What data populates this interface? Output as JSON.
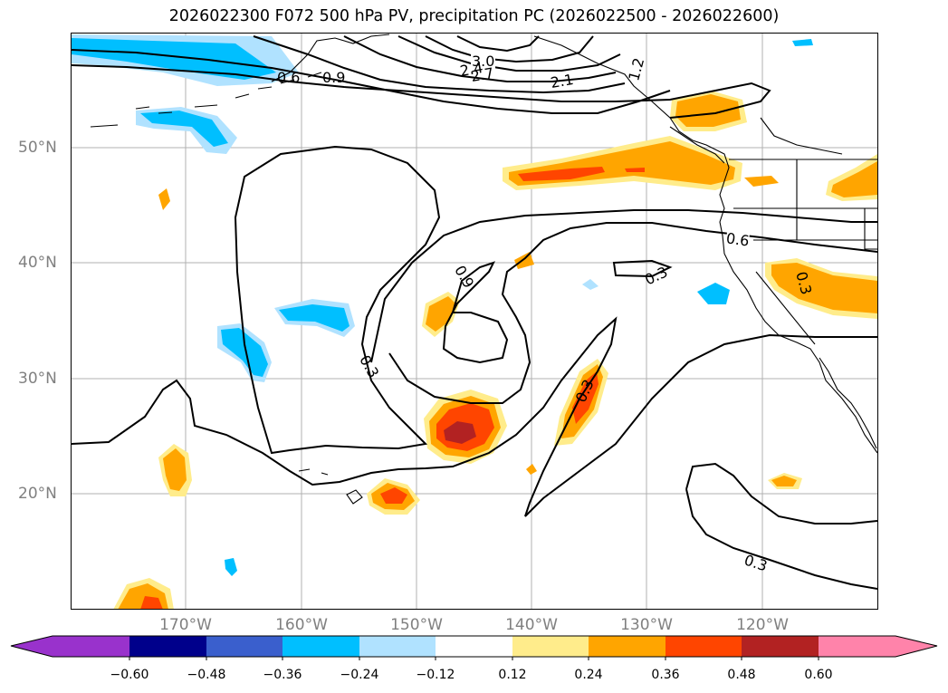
{
  "title": "2026022300 F072 500 hPa PV, precipitation PC (2026022500 - 2026022600)",
  "lat_labels": [
    "50°N",
    "40°N",
    "30°N",
    "20°N"
  ],
  "lon_labels": [
    "170°W",
    "160°W",
    "150°W",
    "140°W",
    "130°W",
    "120°W"
  ],
  "contour_labels": [
    "3.0",
    "2.7",
    "2.4",
    "2.1",
    "1.2",
    "0.9",
    "0.6",
    "0.6",
    "0.9",
    "0.3",
    "0.3",
    "0.3",
    "0.3",
    "0.3"
  ],
  "colorbar": {
    "ticks": [
      "−0.60",
      "−0.48",
      "−0.36",
      "−0.24",
      "−0.12",
      "0.12",
      "0.24",
      "0.36",
      "0.48",
      "0.60"
    ],
    "colors": [
      "#9932cc",
      "#00008b",
      "#3a5fcd",
      "#00bfff",
      "#b0e2ff",
      "#ffffff",
      "#ffec8b",
      "#ffa500",
      "#ff4500",
      "#b22222",
      "#ff83aa"
    ]
  }
}
